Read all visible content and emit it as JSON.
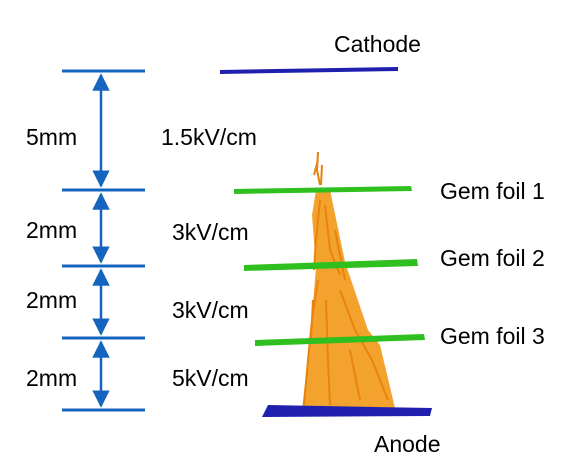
{
  "electrodes": {
    "cathode": "Cathode",
    "anode": "Anode",
    "foil_1": "Gem foil 1",
    "foil_2": "Gem foil 2",
    "foil_3": "Gem foil 3"
  },
  "gaps": [
    {
      "distance": "5mm",
      "field": "1.5kV/cm"
    },
    {
      "distance": "2mm",
      "field": "3kV/cm"
    },
    {
      "distance": "2mm",
      "field": "3kV/cm"
    },
    {
      "distance": "2mm",
      "field": "5kV/cm"
    }
  ],
  "colors": {
    "dimension_lines": "#1565c0",
    "cathode_anode": "#1f1fb0",
    "gem_foil": "#2fbf1f",
    "avalanche": "#f39a1c"
  }
}
